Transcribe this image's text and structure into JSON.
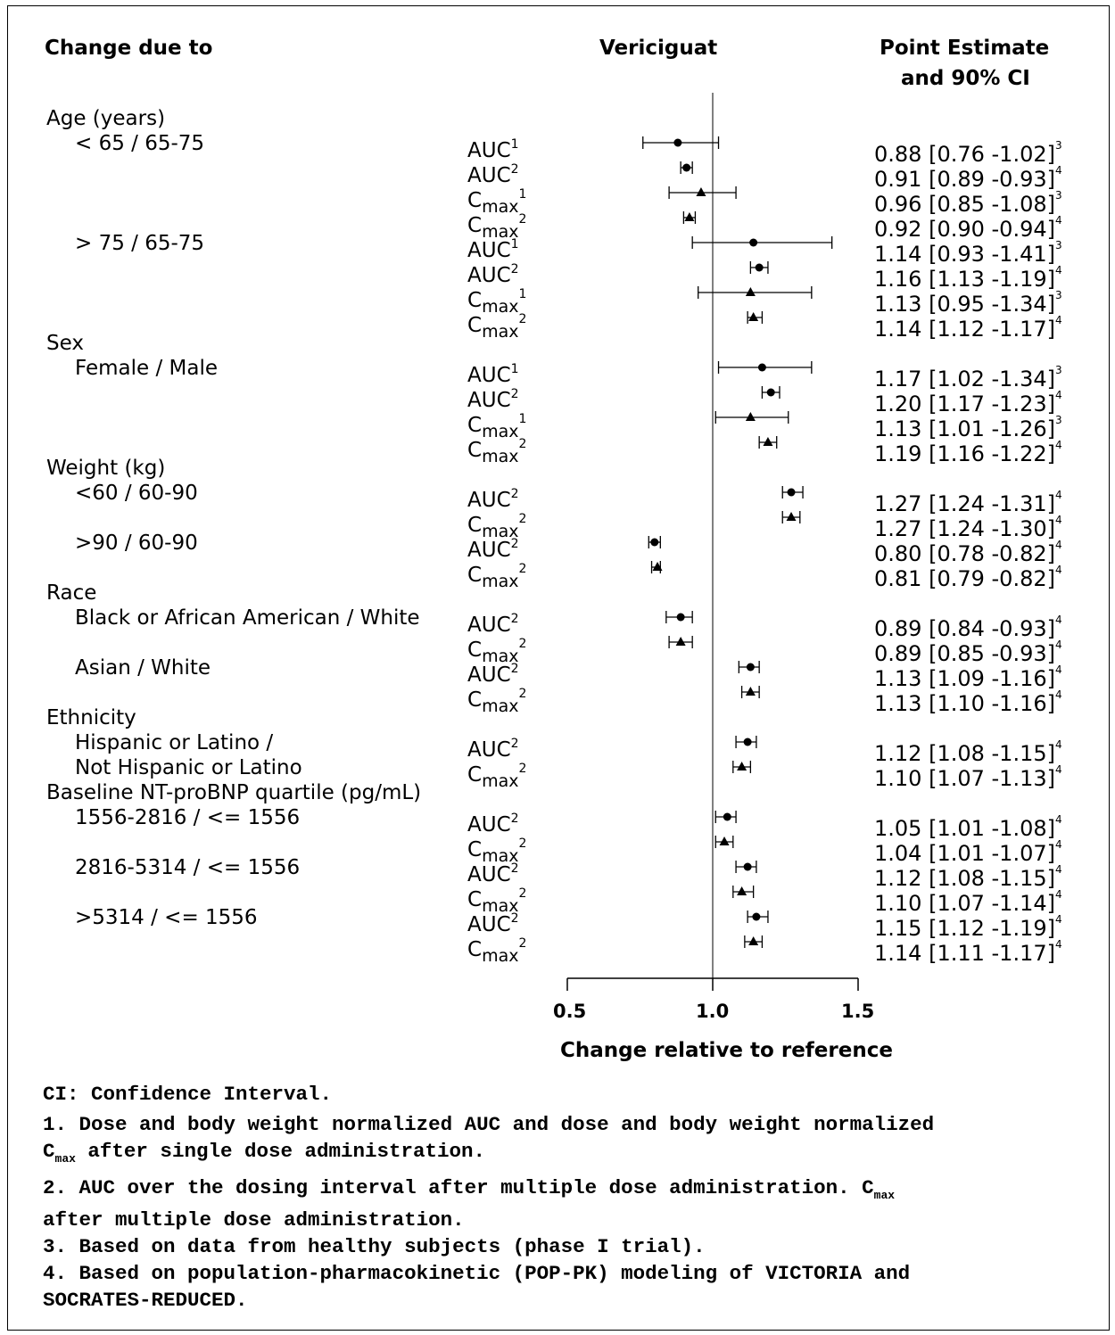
{
  "header": {
    "change_due_to": "Change due to",
    "drug": "Vericiguat",
    "estimate_line1": "Point Estimate",
    "estimate_line2": "and 90% CI"
  },
  "groups": [
    {
      "label": "Age (years)",
      "subs": [
        {
          "label": "< 65 / 65-75",
          "rows": [
            {
              "metric": "AUC",
              "sup": "1",
              "est": 0.88,
              "lo": 0.76,
              "hi": 1.02,
              "text": "0.88",
              "ci": "[0.76 -1.02]",
              "note": "3"
            },
            {
              "metric": "AUC",
              "sup": "2",
              "est": 0.91,
              "lo": 0.89,
              "hi": 0.93,
              "text": "0.91",
              "ci": "[0.89 -0.93]",
              "note": "4"
            },
            {
              "metric": "Cmax",
              "sup": "1",
              "est": 0.96,
              "lo": 0.85,
              "hi": 1.08,
              "text": "0.96",
              "ci": "[0.85 -1.08]",
              "note": "3"
            },
            {
              "metric": "Cmax",
              "sup": "2",
              "est": 0.92,
              "lo": 0.9,
              "hi": 0.94,
              "text": "0.92",
              "ci": "[0.90 -0.94]",
              "note": "4"
            }
          ]
        },
        {
          "label": "> 75 / 65-75",
          "rows": [
            {
              "metric": "AUC",
              "sup": "1",
              "est": 1.14,
              "lo": 0.93,
              "hi": 1.41,
              "text": "1.14",
              "ci": "[0.93 -1.41]",
              "note": "3"
            },
            {
              "metric": "AUC",
              "sup": "2",
              "est": 1.16,
              "lo": 1.13,
              "hi": 1.19,
              "text": "1.16",
              "ci": "[1.13 -1.19]",
              "note": "4"
            },
            {
              "metric": "Cmax",
              "sup": "1",
              "est": 1.13,
              "lo": 0.95,
              "hi": 1.34,
              "text": "1.13",
              "ci": "[0.95 -1.34]",
              "note": "3"
            },
            {
              "metric": "Cmax",
              "sup": "2",
              "est": 1.14,
              "lo": 1.12,
              "hi": 1.17,
              "text": "1.14",
              "ci": "[1.12 -1.17]",
              "note": "4"
            }
          ]
        }
      ]
    },
    {
      "label": "Sex",
      "subs": [
        {
          "label": "Female / Male",
          "rows": [
            {
              "metric": "AUC",
              "sup": "1",
              "est": 1.17,
              "lo": 1.02,
              "hi": 1.34,
              "text": "1.17",
              "ci": "[1.02 -1.34]",
              "note": "3"
            },
            {
              "metric": "AUC",
              "sup": "2",
              "est": 1.2,
              "lo": 1.17,
              "hi": 1.23,
              "text": "1.20",
              "ci": "[1.17 -1.23]",
              "note": "4"
            },
            {
              "metric": "Cmax",
              "sup": "1",
              "est": 1.13,
              "lo": 1.01,
              "hi": 1.26,
              "text": "1.13",
              "ci": "[1.01 -1.26]",
              "note": "3"
            },
            {
              "metric": "Cmax",
              "sup": "2",
              "est": 1.19,
              "lo": 1.16,
              "hi": 1.22,
              "text": "1.19",
              "ci": "[1.16 -1.22]",
              "note": "4"
            }
          ]
        }
      ]
    },
    {
      "label": "Weight (kg)",
      "subs": [
        {
          "label": "<60 / 60-90",
          "rows": [
            {
              "metric": "AUC",
              "sup": "2",
              "est": 1.27,
              "lo": 1.24,
              "hi": 1.31,
              "text": "1.27",
              "ci": "[1.24 -1.31]",
              "note": "4"
            },
            {
              "metric": "Cmax",
              "sup": "2",
              "est": 1.27,
              "lo": 1.24,
              "hi": 1.3,
              "text": "1.27",
              "ci": "[1.24 -1.30]",
              "note": "4"
            }
          ]
        },
        {
          "label": ">90 / 60-90",
          "rows": [
            {
              "metric": "AUC",
              "sup": "2",
              "est": 0.8,
              "lo": 0.78,
              "hi": 0.82,
              "text": "0.80",
              "ci": "[0.78 -0.82]",
              "note": "4"
            },
            {
              "metric": "Cmax",
              "sup": "2",
              "est": 0.81,
              "lo": 0.79,
              "hi": 0.82,
              "text": "0.81",
              "ci": "[0.79 -0.82]",
              "note": "4"
            }
          ]
        }
      ]
    },
    {
      "label": "Race",
      "subs": [
        {
          "label": "Black or African American / White",
          "rows": [
            {
              "metric": "AUC",
              "sup": "2",
              "est": 0.89,
              "lo": 0.84,
              "hi": 0.93,
              "text": "0.89",
              "ci": "[0.84 -0.93]",
              "note": "4"
            },
            {
              "metric": "Cmax",
              "sup": "2",
              "est": 0.89,
              "lo": 0.85,
              "hi": 0.93,
              "text": "0.89",
              "ci": "[0.85 -0.93]",
              "note": "4"
            }
          ]
        },
        {
          "label": "Asian / White",
          "rows": [
            {
              "metric": "AUC",
              "sup": "2",
              "est": 1.13,
              "lo": 1.09,
              "hi": 1.16,
              "text": "1.13",
              "ci": "[1.09 -1.16]",
              "note": "4"
            },
            {
              "metric": "Cmax",
              "sup": "2",
              "est": 1.13,
              "lo": 1.1,
              "hi": 1.16,
              "text": "1.13",
              "ci": "[1.10 -1.16]",
              "note": "4"
            }
          ]
        }
      ]
    },
    {
      "label": "Ethnicity",
      "subs": [
        {
          "label": "Hispanic or Latino /",
          "label2": "Not Hispanic or Latino",
          "rows": [
            {
              "metric": "AUC",
              "sup": "2",
              "est": 1.12,
              "lo": 1.08,
              "hi": 1.15,
              "text": "1.12",
              "ci": "[1.08 -1.15]",
              "note": "4"
            },
            {
              "metric": "Cmax",
              "sup": "2",
              "est": 1.1,
              "lo": 1.07,
              "hi": 1.13,
              "text": "1.10",
              "ci": "[1.07 -1.13]",
              "note": "4"
            }
          ]
        }
      ]
    },
    {
      "label": "Baseline NT-proBNP quartile (pg/mL)",
      "subs": [
        {
          "label": "1556-2816 / <= 1556",
          "rows": [
            {
              "metric": "AUC",
              "sup": "2",
              "est": 1.05,
              "lo": 1.01,
              "hi": 1.08,
              "text": "1.05",
              "ci": "[1.01 -1.08]",
              "note": "4"
            },
            {
              "metric": "Cmax",
              "sup": "2",
              "est": 1.04,
              "lo": 1.01,
              "hi": 1.07,
              "text": "1.04",
              "ci": "[1.01 -1.07]",
              "note": "4"
            }
          ]
        },
        {
          "label": "2816-5314 / <= 1556",
          "rows": [
            {
              "metric": "AUC",
              "sup": "2",
              "est": 1.12,
              "lo": 1.08,
              "hi": 1.15,
              "text": "1.12",
              "ci": "[1.08 -1.15]",
              "note": "4"
            },
            {
              "metric": "Cmax",
              "sup": "2",
              "est": 1.1,
              "lo": 1.07,
              "hi": 1.14,
              "text": "1.10",
              "ci": "[1.07 -1.14]",
              "note": "4"
            }
          ]
        },
        {
          "label": ">5314 / <= 1556",
          "rows": [
            {
              "metric": "AUC",
              "sup": "2",
              "est": 1.15,
              "lo": 1.12,
              "hi": 1.19,
              "text": "1.15",
              "ci": "[1.12 -1.19]",
              "note": "4"
            },
            {
              "metric": "Cmax",
              "sup": "2",
              "est": 1.14,
              "lo": 1.11,
              "hi": 1.17,
              "text": "1.14",
              "ci": "[1.11 -1.17]",
              "note": "4"
            }
          ]
        }
      ]
    }
  ],
  "markers": {
    "AUC": "circle",
    "Cmax": "triangle"
  },
  "chart_data": {
    "type": "scatter",
    "xlabel": "Change relative to reference",
    "xlim": [
      0.5,
      1.5
    ],
    "xticks": [
      "0.5",
      "1.0",
      "1.5"
    ],
    "reference_line": 1.0,
    "grid": false
  },
  "footnotes": {
    "line0": "CI: Confidence Interval.",
    "line1": "1. Dose and body weight normalized AUC and dose and body weight normalized",
    "line2_sub": "max",
    "line2_rest": " after single dose administration.",
    "line3": "2. AUC over the dosing interval after multiple dose administration. C",
    "line3_sub": "max",
    "line4": "after multiple dose administration.",
    "line5": "3. Based on data from healthy subjects (phase I trial).",
    "line6": "4. Based on population-pharmacokinetic (POP-PK) modeling of VICTORIA and",
    "line7": "SOCRATES-REDUCED."
  }
}
